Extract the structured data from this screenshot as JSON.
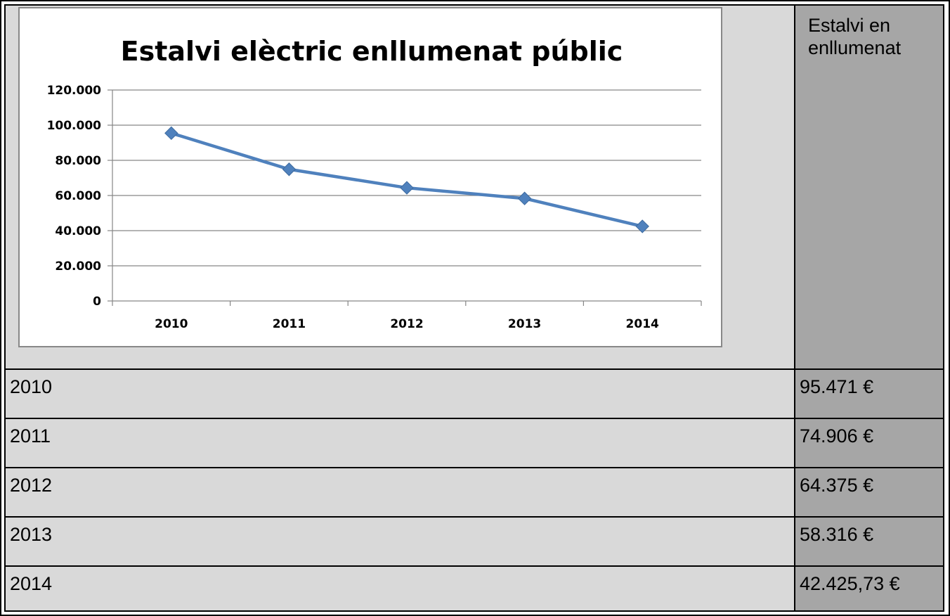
{
  "chart_data": {
    "type": "line",
    "title": "Estalvi elèctric enllumenat públic",
    "categories": [
      "2010",
      "2011",
      "2012",
      "2013",
      "2014"
    ],
    "series": [
      {
        "values": [
          95471,
          74906,
          64375,
          58316,
          42425.73
        ]
      }
    ],
    "ylim": [
      0,
      120000
    ],
    "yticks": [
      "0",
      "20.000",
      "40.000",
      "60.000",
      "80.000",
      "100.000",
      "120.000"
    ],
    "grid": true,
    "line_color": "#4f81bd"
  },
  "table": {
    "header": "Estalvi en enllumenat",
    "rows": [
      {
        "year": "2010",
        "value": "95.471 €"
      },
      {
        "year": "2011",
        "value": "74.906 €"
      },
      {
        "year": "2012",
        "value": "64.375 €"
      },
      {
        "year": "2013",
        "value": "58.316 €"
      },
      {
        "year": "2014",
        "value": "42.425,73 €"
      }
    ]
  }
}
